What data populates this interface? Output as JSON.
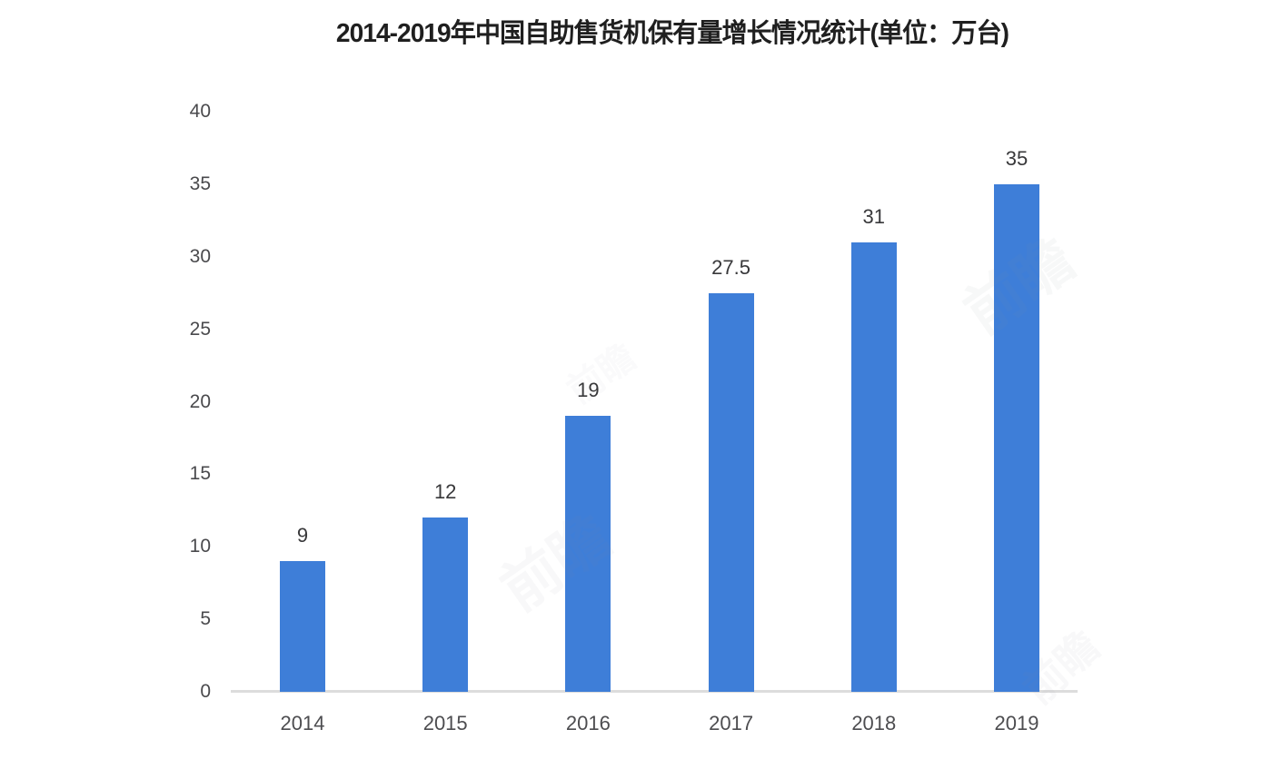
{
  "chart_data": {
    "type": "bar",
    "title": "2014-2019年中国自助售货机保有量增长情况统计(单位：万台)",
    "categories": [
      "2014",
      "2015",
      "2016",
      "2017",
      "2018",
      "2019"
    ],
    "values": [
      9,
      12,
      19,
      27.5,
      31,
      35
    ],
    "data_labels": [
      "9",
      "12",
      "19",
      "27.5",
      "31",
      "35"
    ],
    "y_ticks": [
      "0",
      "5",
      "10",
      "15",
      "20",
      "25",
      "30",
      "35",
      "40"
    ],
    "ylim": [
      0,
      40
    ],
    "xlabel": "",
    "ylabel": "",
    "grid": false,
    "legend_position": "none",
    "bar_color": "#3e7ed8",
    "axis_line_color": "#dcdcdc",
    "title_color": "#1f1f1f",
    "tick_label_color": "#4a4a4d",
    "value_label_color": "#38383a",
    "background_color": "#ffffff",
    "watermark_text": "前瞻"
  }
}
